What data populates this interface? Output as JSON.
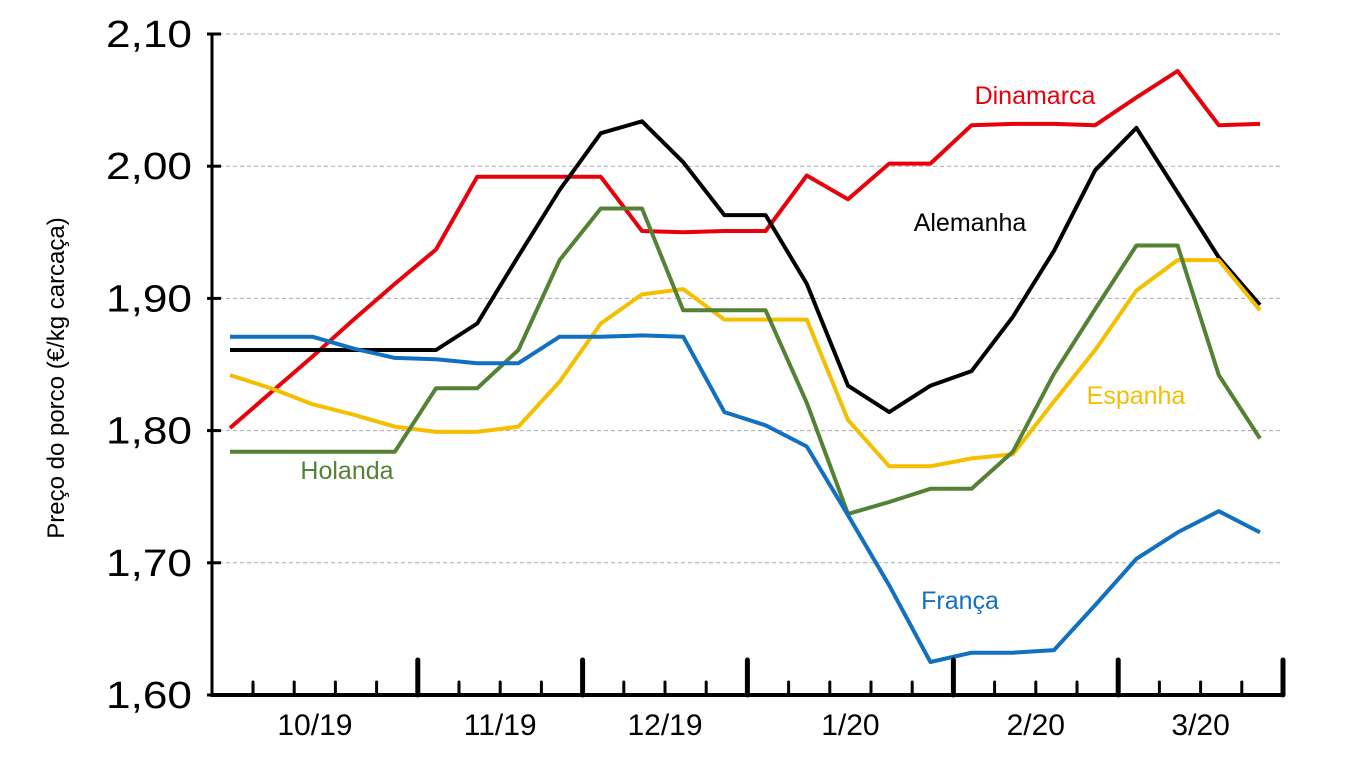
{
  "chart_data": {
    "type": "line",
    "title": "",
    "xlabel": "",
    "ylabel": "Preço do porco (€/kg carcaça)",
    "ylim": [
      1.6,
      2.1
    ],
    "yticks": [
      "1,60",
      "1,70",
      "1,80",
      "1,90",
      "2,00",
      "2,10"
    ],
    "ytick_values": [
      1.6,
      1.7,
      1.8,
      1.9,
      2.0,
      2.1
    ],
    "xticks": [
      "10/19",
      "11/19",
      "12/19",
      "1/20",
      "2/20",
      "3/20"
    ],
    "x_frequency": "weekly",
    "grid": "horizontal dashed",
    "legend": "inline labels",
    "series": [
      {
        "name": "Dinamarca",
        "color": "#e8000b",
        "values": [
          1.802,
          1.829,
          1.856,
          1.884,
          1.911,
          1.937,
          1.992,
          1.992,
          1.992,
          1.992,
          1.951,
          1.95,
          1.951,
          1.951,
          1.993,
          1.975,
          2.002,
          2.002,
          2.031,
          2.032,
          2.032,
          2.031,
          2.052,
          2.072,
          2.031,
          2.032
        ]
      },
      {
        "name": "Alemanha",
        "color": "#000000",
        "values": [
          1.861,
          1.861,
          1.861,
          1.861,
          1.861,
          1.861,
          1.881,
          1.932,
          1.982,
          2.025,
          2.034,
          2.003,
          1.963,
          1.963,
          1.911,
          1.834,
          1.814,
          1.834,
          1.845,
          1.886,
          1.936,
          1.997,
          2.029,
          1.98,
          1.931,
          1.895
        ]
      },
      {
        "name": "Espanha",
        "color": "#f5bf00",
        "values": [
          1.842,
          1.832,
          1.82,
          1.812,
          1.803,
          1.799,
          1.799,
          1.803,
          1.837,
          1.881,
          1.903,
          1.907,
          1.884,
          1.884,
          1.884,
          1.808,
          1.773,
          1.773,
          1.779,
          1.782,
          1.822,
          1.861,
          1.906,
          1.929,
          1.929,
          1.891
        ]
      },
      {
        "name": "Holanda",
        "color": "#548235",
        "values": [
          1.784,
          1.784,
          1.784,
          1.784,
          1.784,
          1.832,
          1.832,
          1.861,
          1.929,
          1.968,
          1.968,
          1.891,
          1.891,
          1.891,
          1.821,
          1.737,
          1.746,
          1.756,
          1.756,
          1.784,
          1.843,
          1.892,
          1.94,
          1.94,
          1.842,
          1.794
        ]
      },
      {
        "name": "França",
        "color": "#1170c0",
        "values": [
          1.871,
          1.871,
          1.871,
          1.862,
          1.855,
          1.854,
          1.851,
          1.851,
          1.871,
          1.871,
          1.872,
          1.871,
          1.814,
          1.804,
          1.788,
          1.736,
          1.683,
          1.625,
          1.632,
          1.632,
          1.634,
          1.668,
          1.703,
          1.723,
          1.739,
          1.723
        ]
      }
    ]
  }
}
